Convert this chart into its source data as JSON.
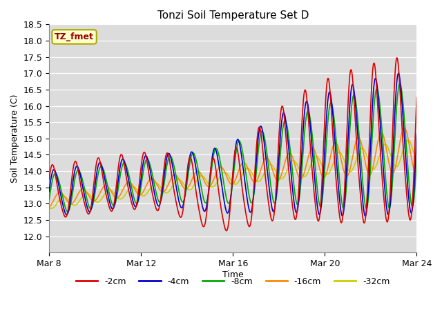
{
  "title": "Tonzi Soil Temperature Set D",
  "xlabel": "Time",
  "ylabel": "Soil Temperature (C)",
  "ylim": [
    11.5,
    18.5
  ],
  "yticks": [
    12.0,
    12.5,
    13.0,
    13.5,
    14.0,
    14.5,
    15.0,
    15.5,
    16.0,
    16.5,
    17.0,
    17.5,
    18.0,
    18.5
  ],
  "xtick_labels": [
    "Mar 8",
    "Mar 12",
    "Mar 16",
    "Mar 20",
    "Mar 24"
  ],
  "xtick_positions": [
    0,
    4,
    8,
    12,
    16
  ],
  "bg_color": "#dcdcdc",
  "legend_label": "TZ_fmet",
  "legend_fg": "#990000",
  "legend_bg": "#ffffcc",
  "legend_border": "#aaaa00",
  "series_colors": [
    "#dd0000",
    "#0000cc",
    "#00aa00",
    "#ff8800",
    "#cccc00"
  ],
  "series_labels": [
    "-2cm",
    "-4cm",
    "-8cm",
    "-16cm",
    "-32cm"
  ],
  "series_linewidths": [
    1.2,
    1.2,
    1.2,
    1.2,
    1.2
  ],
  "figsize": [
    6.4,
    4.8
  ],
  "dpi": 100
}
